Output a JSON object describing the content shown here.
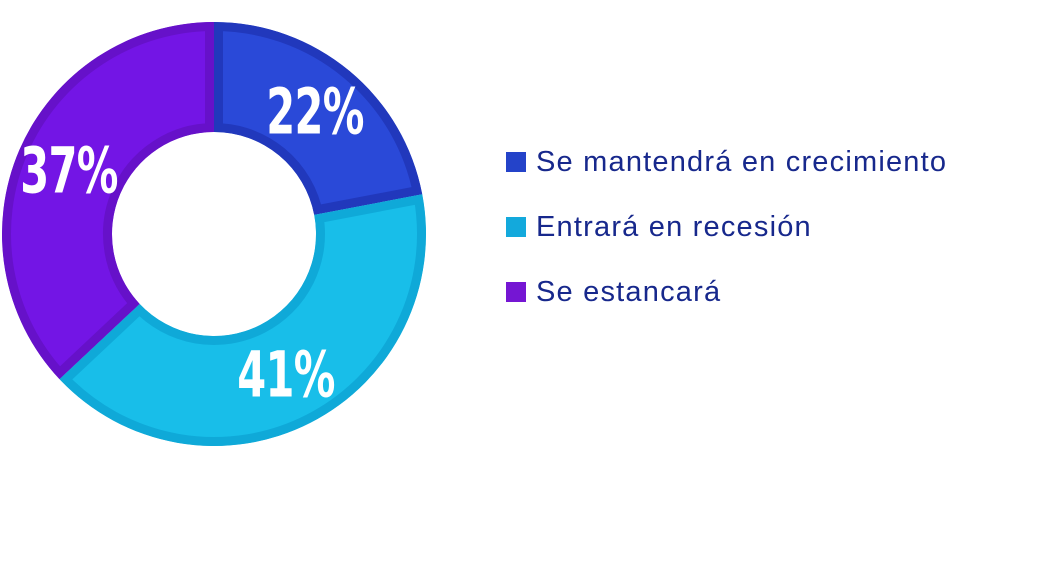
{
  "page": {
    "background": "#FFFFFF"
  },
  "chart_data": {
    "type": "pie",
    "subtype": "donut",
    "direction": "clockwise",
    "start_angle_deg": 0,
    "legend_position": "right",
    "label_color": "#FFFFFF",
    "legend_text_color": "#17288C",
    "categories": [
      "Se mantendrá en crecimiento",
      "Entrará en recesión",
      "Se estancará"
    ],
    "series": [
      {
        "label": "Se mantendrá en crecimiento",
        "value": 22,
        "label_text": "22%",
        "color": "#2A49D8",
        "border_color": "#2138BC",
        "legend_swatch_color": "#2443C9"
      },
      {
        "label": "Entrará en recesión",
        "value": 41,
        "label_text": "41%",
        "color": "#18BEE9",
        "border_color": "#0FA9D8",
        "legend_swatch_color": "#13A9DC"
      },
      {
        "label": "Se estancará",
        "value": 37,
        "label_text": "37%",
        "color": "#7315E5",
        "border_color": "#6611C9",
        "legend_swatch_color": "#7516D3"
      }
    ]
  }
}
